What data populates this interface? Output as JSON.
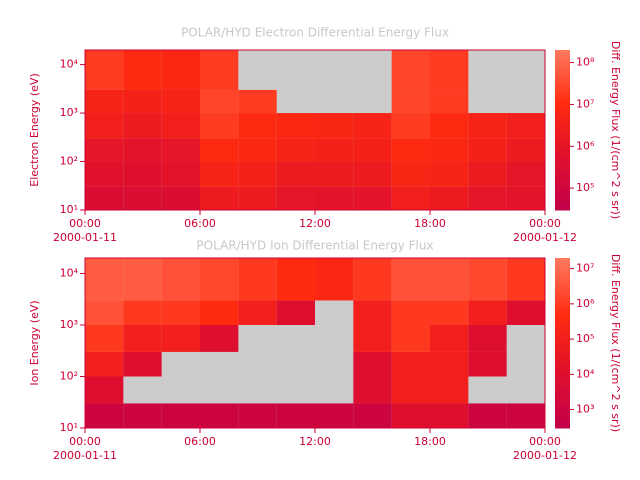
{
  "chart_data": [
    {
      "type": "heatmap",
      "title": "POLAR/HYD  Electron Differential Energy Flux",
      "ylabel": "Electron Energy (eV)",
      "zlabel": "Diff. Energy Flux (1/(cm^2 s sr))",
      "xbins": [
        0,
        2,
        4,
        6,
        8,
        10,
        12,
        14,
        16,
        18,
        20,
        22,
        24
      ],
      "ybins": [
        10,
        30,
        100,
        300,
        1000,
        3000,
        20000
      ],
      "z": [
        [
          300000,
          300000,
          400000,
          2000000,
          2000000,
          1000000,
          800000,
          800000,
          3000000,
          2000000,
          1000000,
          800000
        ],
        [
          600000,
          500000,
          800000,
          5000000,
          4000000,
          2000000,
          2000000,
          2000000,
          6000000,
          5000000,
          2000000,
          1000000
        ],
        [
          1000000,
          800000,
          1000000,
          10000000,
          8000000,
          5000000,
          4000000,
          4000000,
          10000000,
          8000000,
          4000000,
          2000000
        ],
        [
          3000000,
          2000000,
          3000000,
          20000000,
          10000000,
          8000000,
          6000000,
          5000000,
          20000000,
          10000000,
          5000000,
          3000000
        ],
        [
          5000000,
          4000000,
          5000000,
          30000000,
          20000000,
          null,
          null,
          null,
          30000000,
          20000000,
          null,
          null
        ],
        [
          20000000,
          10000000,
          8000000,
          20000000,
          null,
          null,
          null,
          null,
          30000000,
          20000000,
          null,
          null
        ]
      ],
      "xlim": [
        0,
        24
      ],
      "xticks": [
        {
          "value": 0,
          "label": "00:00"
        },
        {
          "value": 6,
          "label": "06:00"
        },
        {
          "value": 12,
          "label": "12:00"
        },
        {
          "value": 18,
          "label": "18:00"
        },
        {
          "value": 24,
          "label": "00:00"
        }
      ],
      "date_labels": [
        {
          "value": 0,
          "label": "2000-01-11"
        },
        {
          "value": 24,
          "label": "2000-01-12"
        }
      ],
      "ylim": [
        10,
        20000
      ],
      "log_y": true,
      "yticks": [
        {
          "value": 10,
          "label": "10¹"
        },
        {
          "value": 100,
          "label": "10²"
        },
        {
          "value": 1000,
          "label": "10³"
        },
        {
          "value": 10000,
          "label": "10⁴"
        }
      ],
      "zlim": [
        30000,
        200000000
      ],
      "log_z": true,
      "zticks": [
        {
          "value": 100000,
          "label": "10⁵"
        },
        {
          "value": 1000000,
          "label": "10⁶"
        },
        {
          "value": 10000000,
          "label": "10⁷"
        },
        {
          "value": 100000000,
          "label": "10⁸"
        }
      ],
      "colormap": [
        "#c2004a",
        "#e0102c",
        "#ff2a10",
        "#ff7a60"
      ],
      "missing_color": "#cccccc"
    },
    {
      "type": "heatmap",
      "title": "POLAR/HYD  Ion Differential Energy Flux",
      "ylabel": "Ion Energy (eV)",
      "zlabel": "Diff. Energy Flux (1/(cm^2 s sr))",
      "xbins": [
        0,
        2,
        4,
        6,
        8,
        10,
        12,
        14,
        16,
        18,
        20,
        22,
        24
      ],
      "ybins": [
        10,
        30,
        100,
        300,
        1000,
        3000,
        20000
      ],
      "z": [
        [
          1000,
          1000,
          1000,
          1000,
          1000,
          1000,
          1000,
          1000,
          10000,
          10000,
          1000,
          1000
        ],
        [
          10000,
          null,
          null,
          null,
          null,
          null,
          null,
          10000,
          100000,
          100000,
          null,
          null
        ],
        [
          100000,
          10000,
          null,
          null,
          null,
          null,
          null,
          10000,
          100000,
          100000,
          10000,
          null
        ],
        [
          1000000,
          100000,
          100000,
          10000,
          null,
          null,
          null,
          100000,
          1000000,
          100000,
          10000,
          null
        ],
        [
          3000000,
          1000000,
          1000000,
          500000,
          100000,
          10000,
          null,
          100000,
          1000000,
          1000000,
          100000,
          10000
        ],
        [
          5000000,
          5000000,
          3000000,
          2000000,
          1000000,
          500000,
          300000,
          1000000,
          3000000,
          3000000,
          2000000,
          1000000
        ]
      ],
      "xlim": [
        0,
        24
      ],
      "xticks": [
        {
          "value": 0,
          "label": "00:00"
        },
        {
          "value": 6,
          "label": "06:00"
        },
        {
          "value": 12,
          "label": "12:00"
        },
        {
          "value": 18,
          "label": "18:00"
        },
        {
          "value": 24,
          "label": "00:00"
        }
      ],
      "date_labels": [
        {
          "value": 0,
          "label": "2000-01-11"
        },
        {
          "value": 24,
          "label": "2000-01-12"
        }
      ],
      "ylim": [
        10,
        20000
      ],
      "log_y": true,
      "yticks": [
        {
          "value": 10,
          "label": "10¹"
        },
        {
          "value": 100,
          "label": "10²"
        },
        {
          "value": 1000,
          "label": "10³"
        },
        {
          "value": 10000,
          "label": "10⁴"
        }
      ],
      "zlim": [
        300,
        20000000
      ],
      "log_z": true,
      "zticks": [
        {
          "value": 1000,
          "label": "10³"
        },
        {
          "value": 10000,
          "label": "10⁴"
        },
        {
          "value": 100000,
          "label": "10⁵"
        },
        {
          "value": 1000000,
          "label": "10⁶"
        },
        {
          "value": 10000000,
          "label": "10⁷"
        }
      ],
      "colormap": [
        "#c2004a",
        "#e0102c",
        "#ff2a10",
        "#ff7a60"
      ],
      "missing_color": "#cccccc"
    }
  ]
}
